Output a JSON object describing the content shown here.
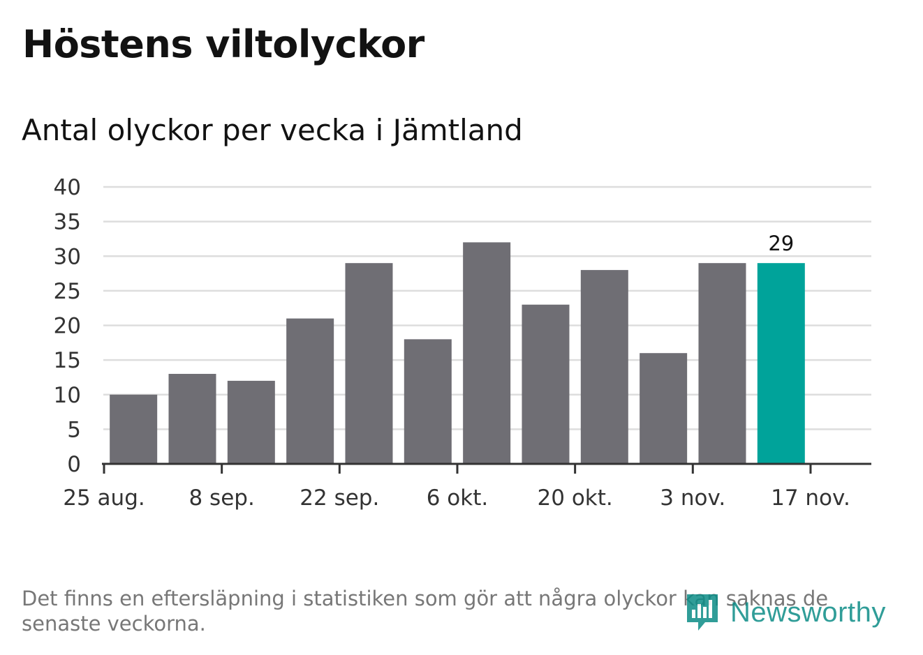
{
  "title": "Höstens viltolyckor",
  "subtitle": "Antal olyckor per vecka i Jämtland",
  "footnote": "Det finns en eftersläpning i statistiken som gör att några olyckor kan saknas de senaste veckorna.",
  "logo": {
    "text": "Newsworthy",
    "icon": "newsworthy-bars-icon",
    "color": "#0c8d87"
  },
  "colors": {
    "bar": "#6f6e74",
    "highlight": "#00a39a",
    "grid": "#dddddd",
    "axis": "#333333"
  },
  "chart_data": {
    "type": "bar",
    "title": "Antal olyckor per vecka i Jämtland",
    "xlabel": "",
    "ylabel": "",
    "ylim": [
      0,
      40
    ],
    "y_ticks": [
      0,
      5,
      10,
      15,
      20,
      25,
      30,
      35,
      40
    ],
    "grid": true,
    "x_tick_labels": [
      "25 aug.",
      "8 sep.",
      "22 sep.",
      "6 okt.",
      "20 okt.",
      "3 nov.",
      "17 nov."
    ],
    "x_tick_week_index": [
      0,
      2,
      4,
      6,
      8,
      10,
      12
    ],
    "week_index": [
      0.5,
      1.5,
      2.5,
      3.5,
      4.5,
      5.5,
      6.5,
      7.5,
      8.5,
      9.5,
      10.5,
      11.5
    ],
    "values": [
      10,
      13,
      12,
      21,
      29,
      18,
      32,
      23,
      28,
      16,
      29,
      29
    ],
    "highlight_index": 11,
    "highlight_label": "29"
  }
}
